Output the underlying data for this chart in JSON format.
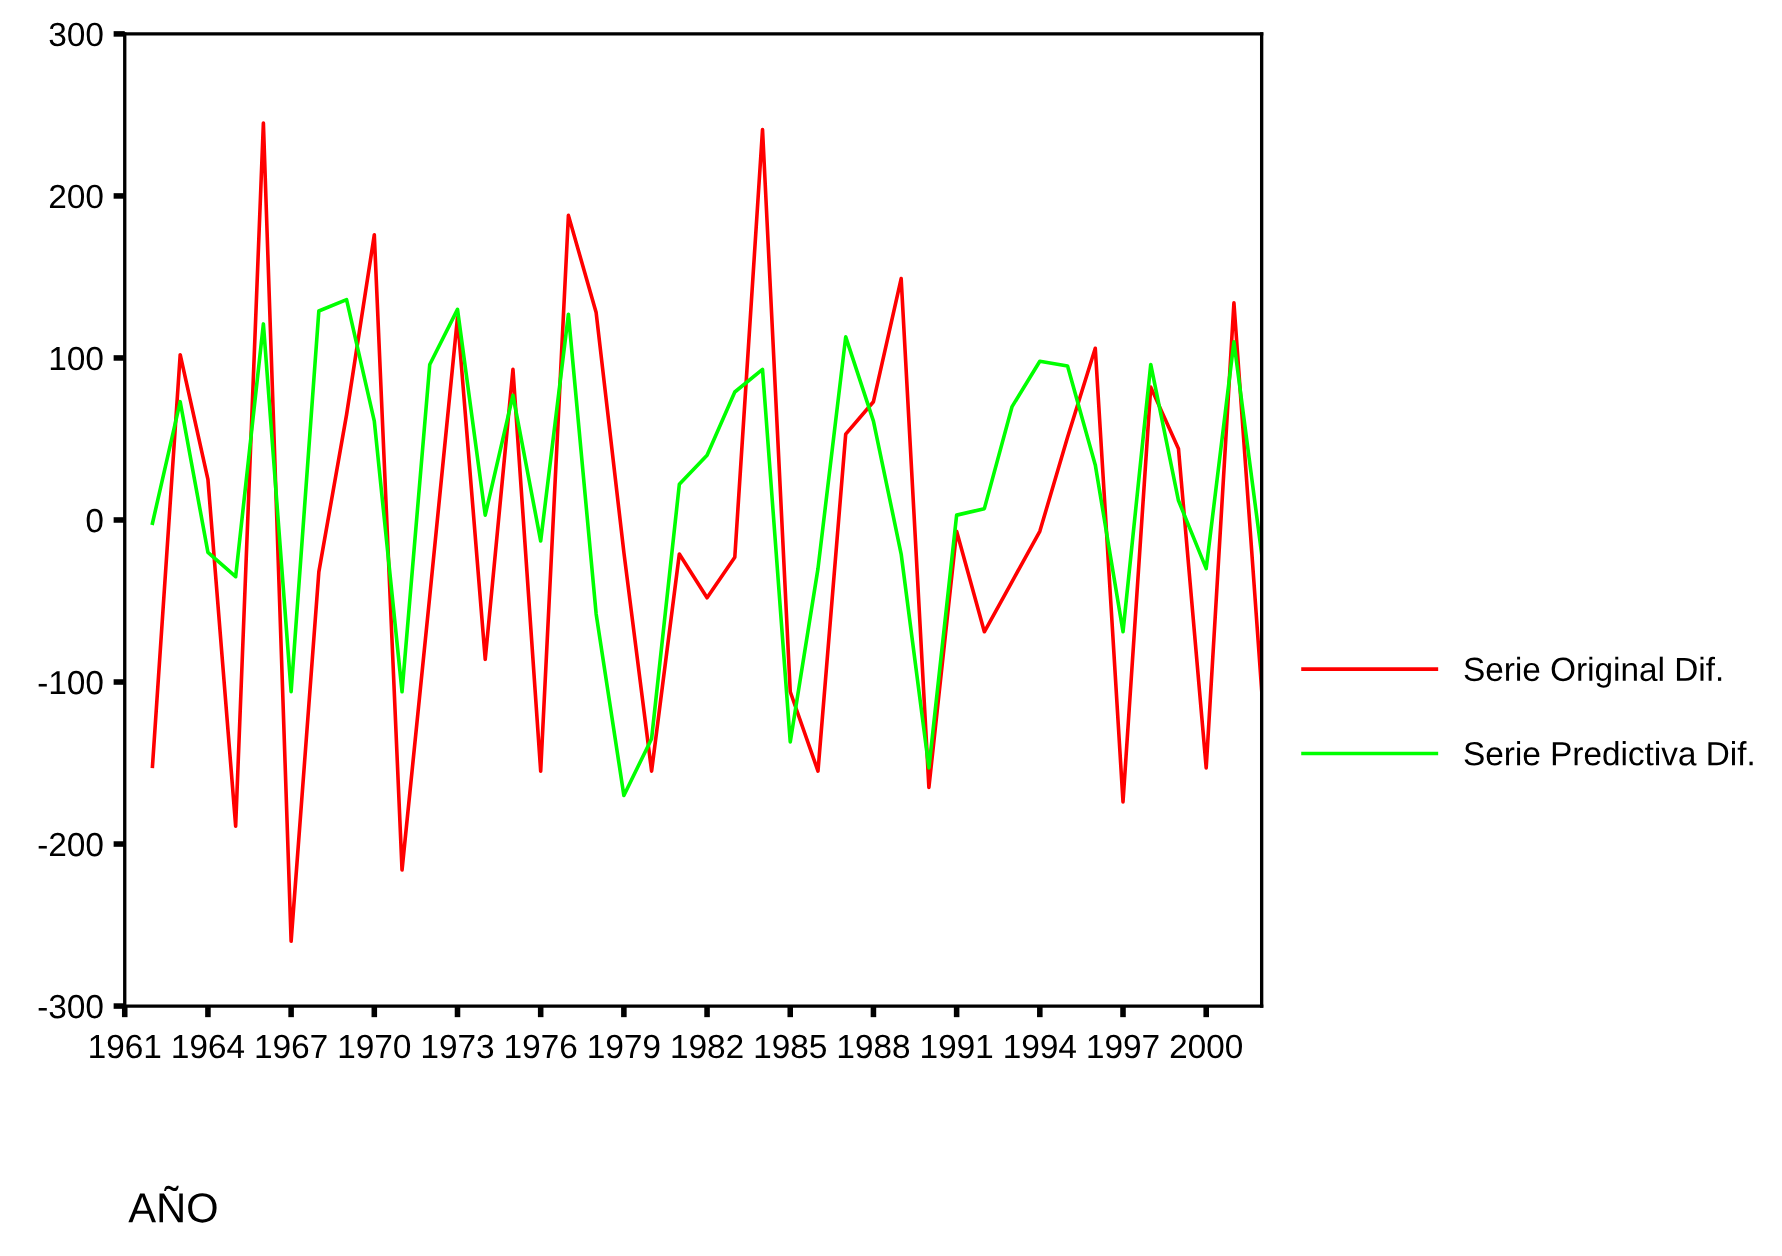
{
  "chart_data": {
    "type": "line",
    "xlabel": "AÑO",
    "x": [
      1962,
      1963,
      1964,
      1965,
      1966,
      1967,
      1968,
      1969,
      1970,
      1971,
      1972,
      1973,
      1974,
      1975,
      1976,
      1977,
      1978,
      1979,
      1980,
      1981,
      1982,
      1983,
      1984,
      1985,
      1986,
      1987,
      1988,
      1989,
      1990,
      1991,
      1992,
      1993,
      1994,
      1995,
      1996,
      1997,
      1998,
      1999,
      2000,
      2001,
      2002
    ],
    "series": [
      {
        "name": "Serie Original Dif.",
        "color": "#ff0000",
        "values": [
          -152,
          102,
          25,
          -189,
          245,
          -260,
          -32,
          65,
          176,
          -216,
          -47,
          125,
          -86,
          93,
          -155,
          188,
          128,
          -20,
          -155,
          -21,
          -48,
          -23,
          241,
          -106,
          -155,
          53,
          73,
          149,
          -165,
          -7,
          -69,
          -38,
          -7,
          51,
          106,
          -174,
          82,
          44,
          -153,
          134,
          -105
        ]
      },
      {
        "name": "Serie Predictiva Dif.",
        "color": "#00ff00",
        "values": [
          -2,
          73,
          -20,
          -35,
          121,
          -106,
          129,
          136,
          61,
          -106,
          96,
          130,
          3,
          77,
          -13,
          127,
          -58,
          -170,
          -135,
          22,
          40,
          79,
          93,
          -137,
          -30,
          113,
          61,
          -21,
          -153,
          3,
          7,
          70,
          98,
          95,
          34,
          -69,
          96,
          12,
          -30,
          110,
          -21
        ]
      }
    ],
    "xlim": [
      1961,
      2002
    ],
    "xticks": [
      1961,
      1964,
      1967,
      1970,
      1973,
      1976,
      1979,
      1982,
      1985,
      1988,
      1991,
      1994,
      1997,
      2000
    ],
    "ylim": [
      -300,
      300
    ],
    "yticks": [
      -300,
      -200,
      -100,
      0,
      100,
      200,
      300
    ],
    "grid": false,
    "legend": "right",
    "marker": "none",
    "line_style": "solid"
  }
}
